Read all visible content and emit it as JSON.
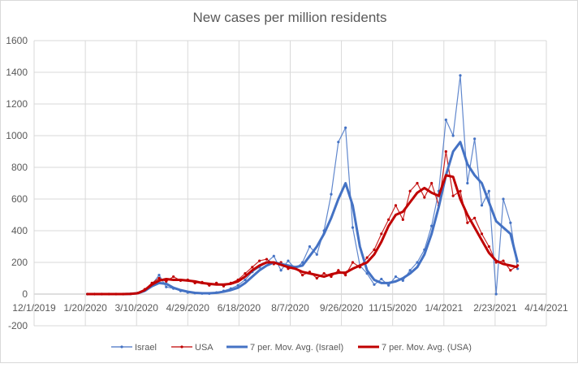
{
  "chart_data": {
    "type": "line",
    "title": "New cases per million residents",
    "xlabel": "",
    "ylabel": "",
    "x_axis": {
      "type": "date",
      "min": "12/1/2019",
      "max": "4/14/2021",
      "tick_labels": [
        "12/1/2019",
        "1/20/2020",
        "3/10/2020",
        "4/29/2020",
        "6/18/2020",
        "8/7/2020",
        "9/26/2020",
        "11/15/2020",
        "1/4/2021",
        "2/23/2021",
        "4/14/2021"
      ],
      "tick_step_days": 50
    },
    "y_axis": {
      "min": -200,
      "max": 1600,
      "tick_labels": [
        "-200",
        "0",
        "200",
        "400",
        "600",
        "800",
        "1000",
        "1200",
        "1400",
        "1600"
      ]
    },
    "grid": true,
    "legend_position": "bottom",
    "x_start_date": "1/22/2020",
    "x_step_days": 7,
    "series": [
      {
        "name": "Israel",
        "color": "#4472C4",
        "style": "thin-markers",
        "values": [
          0,
          0,
          0,
          0,
          0,
          0,
          1,
          6,
          25,
          60,
          120,
          45,
          35,
          20,
          10,
          6,
          4,
          3,
          10,
          20,
          35,
          55,
          90,
          140,
          170,
          200,
          240,
          150,
          210,
          160,
          200,
          300,
          250,
          400,
          630,
          960,
          1050,
          420,
          180,
          130,
          60,
          95,
          55,
          110,
          85,
          150,
          200,
          280,
          430,
          650,
          1100,
          1000,
          1380,
          700,
          980,
          560,
          650,
          0,
          600,
          450,
          160
        ]
      },
      {
        "name": "USA",
        "color": "#C00000",
        "style": "thin-markers",
        "values": [
          0,
          0,
          0,
          0,
          0,
          0,
          1,
          6,
          30,
          70,
          100,
          80,
          110,
          85,
          90,
          70,
          75,
          55,
          70,
          50,
          70,
          90,
          130,
          170,
          210,
          220,
          190,
          200,
          160,
          170,
          120,
          140,
          100,
          130,
          110,
          150,
          120,
          200,
          170,
          230,
          280,
          380,
          470,
          560,
          470,
          650,
          700,
          610,
          700,
          560,
          900,
          620,
          650,
          450,
          480,
          380,
          300,
          200,
          210,
          150,
          180
        ]
      },
      {
        "name": "7 per. Mov. Avg. (Israel)",
        "color": "#4472C4",
        "style": "thick",
        "values": [
          0,
          0,
          0,
          0,
          0,
          0,
          1,
          5,
          20,
          50,
          70,
          65,
          40,
          25,
          15,
          8,
          5,
          5,
          8,
          15,
          25,
          40,
          70,
          110,
          150,
          180,
          200,
          190,
          180,
          170,
          180,
          240,
          300,
          380,
          480,
          600,
          700,
          560,
          300,
          150,
          90,
          70,
          70,
          80,
          100,
          130,
          170,
          250,
          380,
          550,
          750,
          900,
          960,
          820,
          750,
          700,
          580,
          460,
          420,
          380,
          200
        ]
      },
      {
        "name": "7 per. Mov. Avg. (USA)",
        "color": "#C00000",
        "style": "thick",
        "values": [
          0,
          0,
          0,
          0,
          0,
          0,
          1,
          5,
          25,
          60,
          85,
          95,
          90,
          90,
          85,
          80,
          70,
          65,
          60,
          60,
          65,
          80,
          110,
          150,
          180,
          200,
          200,
          185,
          170,
          160,
          140,
          130,
          120,
          110,
          125,
          135,
          135,
          160,
          180,
          200,
          250,
          330,
          430,
          500,
          520,
          580,
          640,
          670,
          640,
          620,
          750,
          740,
          600,
          500,
          420,
          340,
          260,
          210,
          190,
          180,
          170
        ]
      }
    ]
  }
}
